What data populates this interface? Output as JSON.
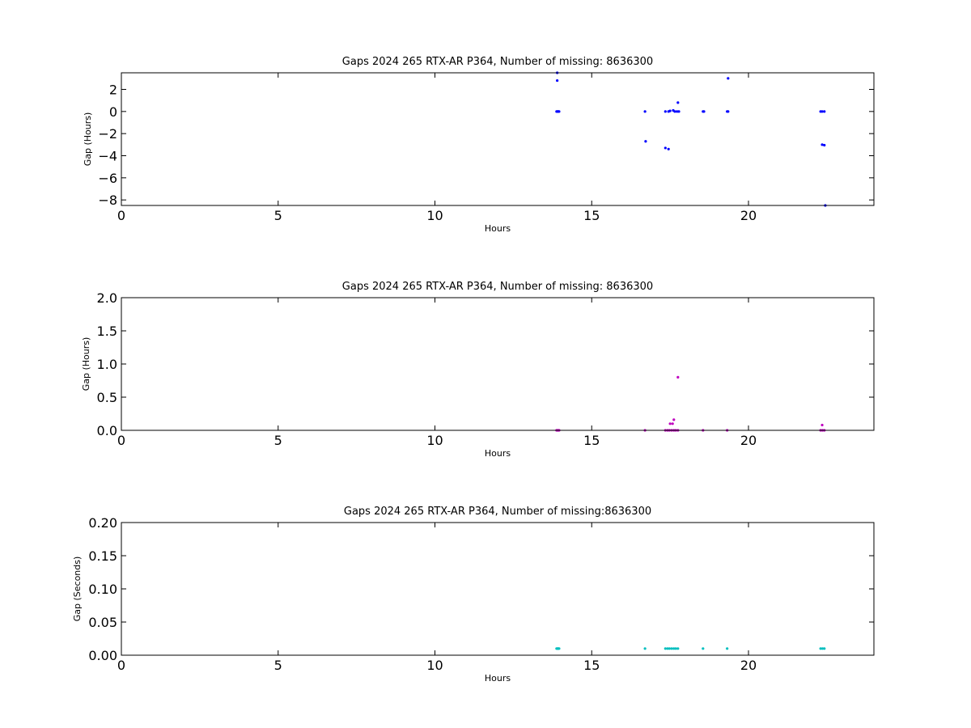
{
  "chart_data": [
    {
      "type": "scatter",
      "title": "Gaps 2024 265 RTX-AR  P364, Number of missing: 8636300",
      "xlabel": "Hours",
      "ylabel": "Gap (Hours)",
      "xlim": [
        0,
        24
      ],
      "ylim": [
        -8.5,
        3.5
      ],
      "xticks": [
        "0",
        "5",
        "10",
        "15",
        "20"
      ],
      "xtick_values": [
        0,
        5,
        10,
        15,
        20
      ],
      "yticks": [
        "2",
        "0",
        "−2",
        "−4",
        "−6",
        "−8"
      ],
      "ytick_values": [
        2,
        0,
        -2,
        -4,
        -6,
        -8
      ],
      "grid": false,
      "marker_color": "#0000ff",
      "series": [
        {
          "x": [
            13.88,
            13.9,
            13.92,
            13.94,
            13.96,
            13.9,
            13.9,
            16.7,
            16.72,
            17.35,
            17.45,
            17.5,
            17.6,
            17.65,
            17.72,
            17.78,
            17.45,
            17.35,
            17.75,
            18.55,
            18.58,
            19.32,
            19.35,
            19.35,
            22.3,
            22.35,
            22.42,
            22.35,
            22.42,
            22.45
          ],
          "y": [
            0,
            0,
            0,
            0,
            0,
            2.8,
            3.5,
            0,
            -2.7,
            0,
            0,
            0.05,
            0.1,
            0,
            0,
            0,
            -3.4,
            -3.3,
            0.8,
            0,
            0,
            0,
            0,
            3.0,
            0,
            0,
            0,
            -3.0,
            -3.05,
            -8.5
          ]
        }
      ]
    },
    {
      "type": "scatter",
      "title": "Gaps 2024 265 RTX-AR  P364, Number of missing: 8636300",
      "xlabel": "Hours",
      "ylabel": "Gap (Hours)",
      "xlim": [
        0,
        24
      ],
      "ylim": [
        0,
        2.0
      ],
      "xticks": [
        "0",
        "5",
        "10",
        "15",
        "20"
      ],
      "xtick_values": [
        0,
        5,
        10,
        15,
        20
      ],
      "yticks": [
        "2.0",
        "1.5",
        "1.0",
        "0.5",
        "0.0"
      ],
      "ytick_values": [
        2.0,
        1.5,
        1.0,
        0.5,
        0.0
      ],
      "grid": false,
      "marker_color": "#bf00bf",
      "series": [
        {
          "x": [
            13.88,
            13.9,
            13.92,
            13.94,
            13.96,
            16.7,
            17.35,
            17.42,
            17.48,
            17.55,
            17.62,
            17.68,
            17.75,
            17.5,
            17.58,
            17.62,
            17.75,
            18.55,
            19.32,
            22.3,
            22.36,
            22.42,
            22.35
          ],
          "y": [
            0,
            0,
            0,
            0,
            0,
            0,
            0,
            0,
            0,
            0,
            0,
            0,
            0,
            0.1,
            0.1,
            0.16,
            0.8,
            0,
            0,
            0,
            0,
            0,
            0.08
          ]
        }
      ]
    },
    {
      "type": "scatter",
      "title": "Gaps 2024 265 RTX-AR  P364, Number of missing:8636300",
      "xlabel": "Hours",
      "ylabel": "Gap (Seconds)",
      "xlim": [
        0,
        24
      ],
      "ylim": [
        0,
        0.2
      ],
      "xticks": [
        "0",
        "5",
        "10",
        "15",
        "20"
      ],
      "xtick_values": [
        0,
        5,
        10,
        15,
        20
      ],
      "yticks": [
        "0.20",
        "0.15",
        "0.10",
        "0.05",
        "0.00"
      ],
      "ytick_values": [
        0.2,
        0.15,
        0.1,
        0.05,
        0.0
      ],
      "grid": false,
      "marker_color": "#00bfbf",
      "series": [
        {
          "x": [
            13.88,
            13.9,
            13.92,
            13.94,
            13.96,
            16.7,
            17.35,
            17.42,
            17.48,
            17.55,
            17.62,
            17.68,
            17.75,
            18.55,
            19.32,
            22.3,
            22.36,
            22.42
          ],
          "y": [
            0.01,
            0.01,
            0.01,
            0.01,
            0.01,
            0.01,
            0.01,
            0.01,
            0.01,
            0.01,
            0.01,
            0.01,
            0.01,
            0.01,
            0.01,
            0.01,
            0.01,
            0.01
          ]
        }
      ]
    }
  ]
}
